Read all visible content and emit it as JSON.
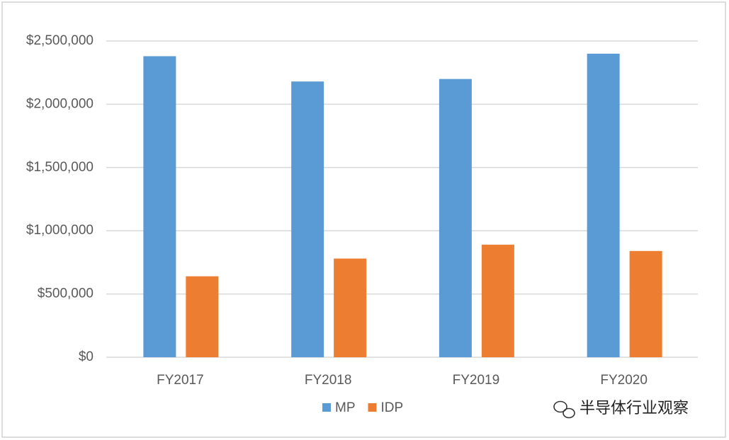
{
  "chart_data": {
    "type": "bar",
    "categories": [
      "FY2017",
      "FY2018",
      "FY2019",
      "FY2020"
    ],
    "series": [
      {
        "name": "MP",
        "color": "#5b9bd5",
        "values": [
          2380000,
          2180000,
          2200000,
          2400000
        ]
      },
      {
        "name": "IDP",
        "color": "#ed7d31",
        "values": [
          640000,
          780000,
          890000,
          840000
        ]
      }
    ],
    "ylim": [
      0,
      2500000
    ],
    "yticks": [
      {
        "value": 0,
        "label": "$0"
      },
      {
        "value": 500000,
        "label": "$500,000"
      },
      {
        "value": 1000000,
        "label": "$1,000,000"
      },
      {
        "value": 1500000,
        "label": "$1,500,000"
      },
      {
        "value": 2000000,
        "label": "$2,000,000"
      },
      {
        "value": 2500000,
        "label": "$2,500,000"
      }
    ],
    "grid": true,
    "legend": "bottom",
    "watermark": "半导体行业观察"
  }
}
